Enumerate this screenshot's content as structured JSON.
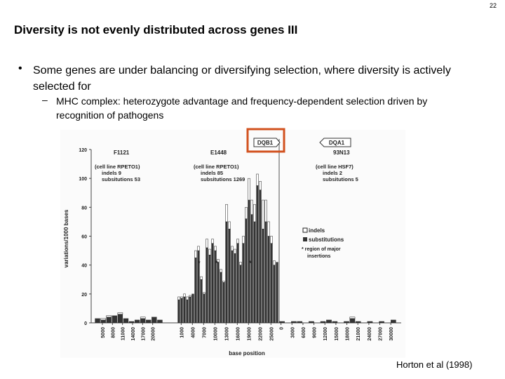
{
  "slide_number": "22",
  "title": "Diversity is not evenly distributed across genes III",
  "bullet": {
    "text": "Some genes are under balancing or diversifying selection, where diversity is actively selected for",
    "sub": "MHC complex: heterozygote advantage and frequency-dependent selection driven by recognition of pathogens"
  },
  "figure": {
    "ylabel": "variations/1000 bases",
    "xlabel": "base position",
    "ylim": [
      0,
      120
    ],
    "yticks": [
      0,
      20,
      40,
      60,
      80,
      100,
      120
    ],
    "genes": [
      "DQB1",
      "DQA1"
    ],
    "panels": [
      {
        "label": "F1121",
        "info": [
          "(cell line RPETO1)",
          "indels  9",
          "subsitutions  53"
        ],
        "xlim": [
          2700,
          23000
        ],
        "xticks": [
          5000,
          8000,
          11000,
          14000,
          17000,
          20000
        ],
        "substitutions": [
          3,
          2,
          4,
          5,
          6,
          3,
          1,
          2,
          3,
          2,
          4,
          2
        ],
        "indels": [
          0,
          1,
          1,
          0,
          1,
          0,
          0,
          0,
          1,
          0,
          0,
          0
        ]
      },
      {
        "label": "E1448",
        "info": [
          "(cell line RPETO1)",
          "indels  85",
          "subsitutions  1269"
        ],
        "xlim": [
          0,
          27000
        ],
        "xticks": [
          1000,
          4000,
          7000,
          10000,
          13000,
          16000,
          19000,
          22000,
          25000
        ],
        "substitutions": [
          16,
          17,
          18,
          16,
          18,
          20,
          45,
          50,
          30,
          20,
          52,
          47,
          55,
          50,
          42,
          35,
          28,
          70,
          65,
          50,
          48,
          55,
          40,
          55,
          72,
          85,
          75,
          70,
          95,
          92,
          65,
          70,
          60,
          55,
          40,
          42
        ],
        "indels": [
          2,
          1,
          2,
          2,
          1,
          0,
          5,
          3,
          2,
          1,
          6,
          4,
          3,
          3,
          2,
          2,
          1,
          12,
          5,
          3,
          3,
          3,
          2,
          5,
          8,
          15,
          10,
          12,
          8,
          6,
          20,
          15,
          10,
          5,
          3,
          0
        ]
      },
      {
        "label": "93N13",
        "info": [
          "(cell line HSF7)",
          "indels  2",
          "subsitutions  5"
        ],
        "xlim": [
          -500,
          31500
        ],
        "xticks": [
          0,
          3000,
          6000,
          9000,
          12000,
          15000,
          18000,
          21000,
          24000,
          27000,
          30000
        ],
        "substitutions": [
          1,
          0,
          1,
          1,
          0,
          1,
          0,
          1,
          2,
          1,
          0,
          1,
          3,
          1,
          0,
          1,
          0,
          1,
          0,
          2
        ],
        "indels": [
          0,
          0,
          0,
          0,
          0,
          0,
          0,
          0,
          0,
          0,
          0,
          0,
          1,
          0,
          0,
          0,
          0,
          0,
          0,
          0
        ]
      }
    ],
    "legend": {
      "indels": "indels",
      "substitutions": "substitutions",
      "note": [
        "* region of major",
        "insertions"
      ]
    },
    "markers": [
      "*",
      "*",
      "*"
    ]
  },
  "citation": "Horton et al (1998)"
}
